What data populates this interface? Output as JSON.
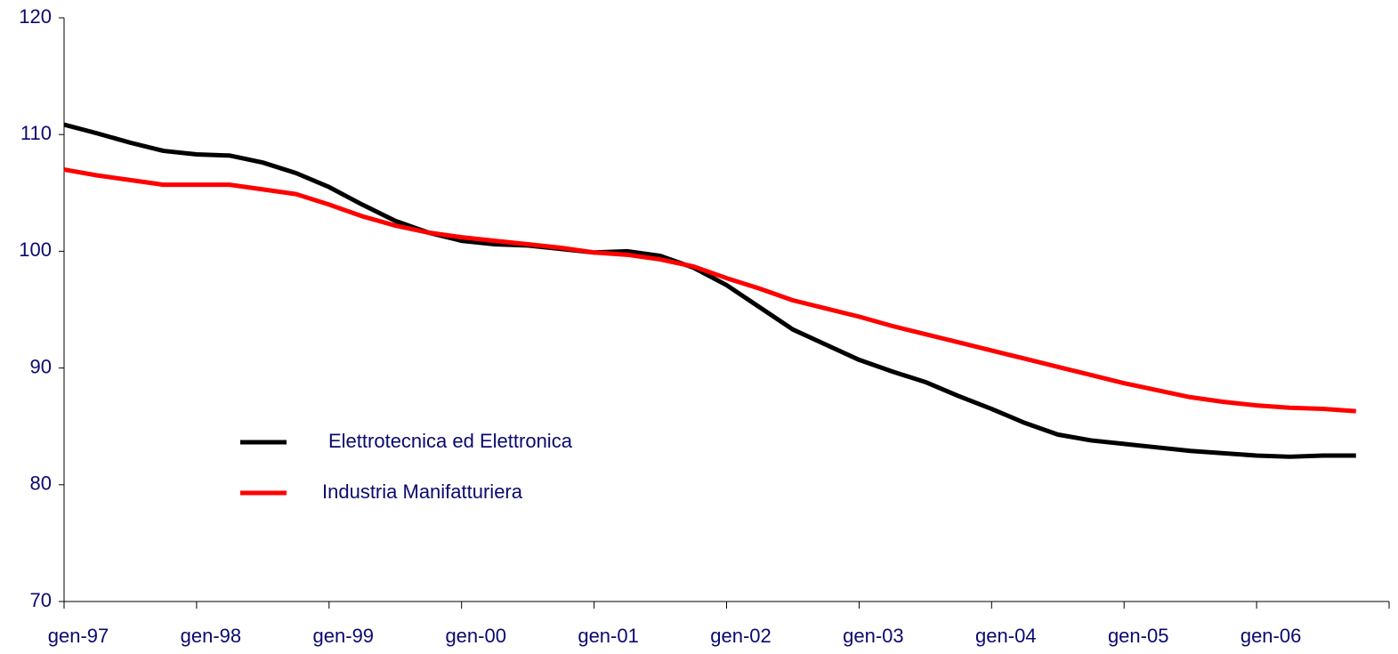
{
  "chart_data": {
    "type": "line",
    "x": [
      0,
      3,
      6,
      9,
      12,
      15,
      18,
      21,
      24,
      27,
      30,
      33,
      36,
      39,
      42,
      45,
      48,
      51,
      54,
      57,
      60,
      63,
      66,
      69,
      72,
      75,
      78,
      81,
      84,
      87,
      90,
      93,
      96,
      99,
      102,
      105,
      108,
      111,
      114,
      117
    ],
    "series": [
      {
        "name": "Elettrotecnica ed Elettronica",
        "color": "#000000",
        "values": [
          110.85,
          110.1,
          109.3,
          108.6,
          108.3,
          108.2,
          107.6,
          106.7,
          105.5,
          104.0,
          102.6,
          101.6,
          100.9,
          100.6,
          100.5,
          100.2,
          99.9,
          100.0,
          99.6,
          98.6,
          97.1,
          95.2,
          93.3,
          92.0,
          90.7,
          89.7,
          88.8,
          87.6,
          86.5,
          85.3,
          84.3,
          83.8,
          83.5,
          83.2,
          82.9,
          82.7,
          82.5,
          82.4,
          82.5,
          82.5
        ]
      },
      {
        "name": "Industria Manifatturiera",
        "color": "#ff0000",
        "values": [
          107.0,
          106.5,
          106.1,
          105.7,
          105.7,
          105.7,
          105.3,
          104.9,
          104.0,
          103.0,
          102.2,
          101.6,
          101.2,
          100.9,
          100.6,
          100.3,
          99.9,
          99.7,
          99.3,
          98.7,
          97.7,
          96.8,
          95.8,
          95.1,
          94.4,
          93.6,
          92.9,
          92.2,
          91.5,
          90.8,
          90.1,
          89.4,
          88.7,
          88.1,
          87.5,
          87.1,
          86.8,
          86.6,
          86.5,
          86.3
        ]
      }
    ],
    "xlim": [
      0,
      120
    ],
    "xticks": [
      {
        "value": 0,
        "label": "gen-97"
      },
      {
        "value": 12,
        "label": "gen-98"
      },
      {
        "value": 24,
        "label": "gen-99"
      },
      {
        "value": 36,
        "label": "gen-00"
      },
      {
        "value": 48,
        "label": "gen-01"
      },
      {
        "value": 60,
        "label": "gen-02"
      },
      {
        "value": 72,
        "label": "gen-03"
      },
      {
        "value": 84,
        "label": "gen-04"
      },
      {
        "value": 96,
        "label": "gen-05"
      },
      {
        "value": 108,
        "label": "gen-06"
      }
    ],
    "ylim": [
      70,
      120
    ],
    "yticks": [
      70,
      80,
      90,
      100,
      110,
      120
    ]
  }
}
